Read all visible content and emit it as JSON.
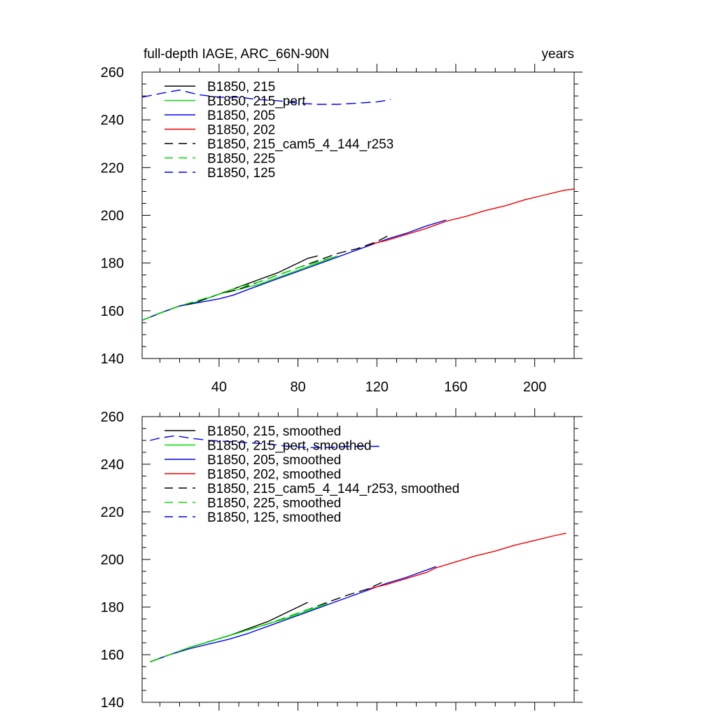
{
  "chart_data": [
    {
      "type": "line",
      "title_left": "full-depth IAGE, ARC_66N-90N",
      "title_right": "years",
      "xlim": [
        1,
        220
      ],
      "ylim": [
        140,
        260
      ],
      "x_ticks": [
        40,
        80,
        120,
        160,
        200
      ],
      "x_tick_labels": [
        "40",
        "80",
        "120",
        "160",
        "200"
      ],
      "y_ticks": [
        140,
        160,
        180,
        200,
        220,
        240,
        260
      ],
      "y_tick_labels": [
        "140",
        "160",
        "180",
        "200",
        "220",
        "240",
        "260"
      ],
      "legend_position": "top-left",
      "series": [
        {
          "name": "B1850, 215",
          "color": "#000000",
          "dash": "solid",
          "x": [
            1,
            10,
            20,
            30,
            40,
            50,
            60,
            70,
            80,
            85,
            90
          ],
          "y": [
            156,
            159,
            162,
            164,
            167,
            170,
            173,
            176,
            180,
            182,
            183
          ]
        },
        {
          "name": "B1850, 215_pert",
          "color": "#00dd00",
          "dash": "solid",
          "x": [
            1,
            10,
            20,
            30,
            40,
            50,
            60,
            70,
            80,
            90,
            100
          ],
          "y": [
            156,
            159,
            162,
            164,
            167,
            169,
            171,
            174,
            177,
            180,
            183
          ]
        },
        {
          "name": "B1850, 205",
          "color": "#0000ee",
          "dash": "solid",
          "x": [
            1,
            10,
            20,
            30,
            40,
            47,
            55,
            65,
            75,
            85,
            95,
            105,
            115,
            125,
            135,
            145,
            155
          ],
          "y": [
            156,
            159,
            162,
            163.5,
            165,
            166.5,
            169,
            172,
            175,
            178,
            181,
            184,
            187,
            190,
            192.5,
            195.5,
            198
          ]
        },
        {
          "name": "B1850, 202",
          "color": "#ee0000",
          "dash": "solid",
          "x": [
            115,
            125,
            135,
            145,
            155,
            165,
            175,
            185,
            195,
            205,
            215,
            220
          ],
          "y": [
            187.5,
            189.5,
            192,
            194.5,
            197.5,
            199.5,
            202,
            204,
            206.5,
            208.5,
            210.5,
            211
          ]
        },
        {
          "name": "B1850, 215_cam5_4_144_r253",
          "color": "#000000",
          "dash": "dashed",
          "x": [
            1,
            10,
            20,
            30,
            40,
            50,
            60,
            70,
            80,
            90,
            100,
            110,
            120,
            127
          ],
          "y": [
            156,
            159,
            162,
            164,
            167,
            169,
            172,
            175,
            178,
            181,
            184,
            186,
            189,
            192
          ]
        },
        {
          "name": "B1850, 225",
          "color": "#00dd00",
          "dash": "dashed",
          "x": [
            1,
            10,
            20,
            30,
            40,
            50,
            60,
            70,
            80,
            90,
            100
          ],
          "y": [
            156,
            159,
            162,
            164.5,
            167,
            170,
            172,
            175,
            178,
            180.5,
            183
          ]
        },
        {
          "name": "B1850, 125",
          "color": "#0000ee",
          "dash": "dashed",
          "x": [
            1,
            10,
            20,
            30,
            40,
            50,
            60,
            70,
            80,
            90,
            100,
            110,
            120,
            127
          ],
          "y": [
            249.5,
            251,
            252.5,
            250.5,
            249.5,
            249.5,
            248.5,
            248,
            247,
            246.5,
            246.5,
            247,
            247.5,
            248.5
          ]
        }
      ]
    },
    {
      "type": "line",
      "xlim": [
        1,
        220
      ],
      "ylim": [
        140,
        260
      ],
      "x_ticks": [
        40,
        80,
        120,
        160,
        200
      ],
      "y_ticks": [
        140,
        160,
        180,
        200,
        220,
        240,
        260
      ],
      "y_tick_labels": [
        "140",
        "160",
        "180",
        "200",
        "220",
        "240",
        "260"
      ],
      "legend_position": "top-left",
      "series": [
        {
          "name": "B1850, 215, smoothed",
          "color": "#000000",
          "dash": "solid",
          "x": [
            5,
            15,
            25,
            35,
            45,
            55,
            65,
            75,
            85
          ],
          "y": [
            157,
            160,
            163,
            165.5,
            168,
            171,
            174,
            178,
            182
          ]
        },
        {
          "name": "B1850, 215_pert, smoothed",
          "color": "#00dd00",
          "dash": "solid",
          "x": [
            5,
            15,
            25,
            35,
            45,
            55,
            65,
            75,
            85,
            95
          ],
          "y": [
            157,
            160,
            163,
            165.5,
            168,
            170.5,
            173,
            175.5,
            178.5,
            181.5
          ]
        },
        {
          "name": "B1850, 205, smoothed",
          "color": "#0000ee",
          "dash": "solid",
          "x": [
            5,
            15,
            25,
            35,
            45,
            55,
            65,
            75,
            85,
            95,
            105,
            115,
            125,
            135,
            145,
            150
          ],
          "y": [
            157,
            160,
            162.5,
            164.5,
            166.5,
            169,
            172,
            175,
            178,
            181,
            184,
            187,
            190,
            192.5,
            195.5,
            197
          ]
        },
        {
          "name": "B1850, 202, smoothed",
          "color": "#ee0000",
          "dash": "solid",
          "x": [
            115,
            125,
            135,
            145,
            150,
            160,
            170,
            180,
            190,
            200,
            210,
            216
          ],
          "y": [
            187.5,
            189.5,
            192,
            194.5,
            196.5,
            199,
            201.5,
            203.5,
            206,
            208,
            210,
            211
          ]
        },
        {
          "name": "B1850, 215_cam5_4_144_r253, smoothed",
          "color": "#000000",
          "dash": "dashed",
          "x": [
            5,
            15,
            25,
            35,
            45,
            55,
            65,
            75,
            85,
            95,
            105,
            115,
            123
          ],
          "y": [
            157,
            160,
            163,
            165.5,
            168,
            170.5,
            173,
            176,
            179,
            182,
            185,
            187.5,
            190.5
          ]
        },
        {
          "name": "B1850, 225, smoothed",
          "color": "#00dd00",
          "dash": "dashed",
          "x": [
            5,
            15,
            25,
            35,
            45,
            55,
            65,
            75,
            85,
            95
          ],
          "y": [
            157,
            160,
            163,
            165.5,
            168,
            170.5,
            173,
            176,
            179,
            181.5
          ]
        },
        {
          "name": "B1850, 125, smoothed",
          "color": "#0000ee",
          "dash": "dashed",
          "x": [
            5,
            10,
            18,
            25,
            35,
            45,
            55,
            65,
            75,
            85,
            95,
            105,
            115,
            123
          ],
          "y": [
            250,
            251,
            252,
            251,
            250,
            249.5,
            249,
            248.5,
            247.5,
            247,
            247,
            247.5,
            247.5,
            247.5
          ]
        }
      ]
    }
  ]
}
